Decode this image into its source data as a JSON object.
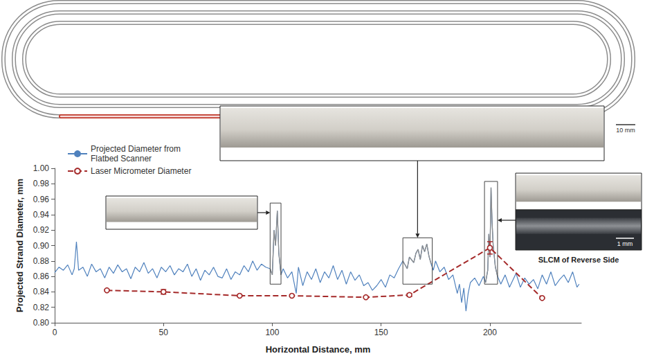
{
  "chart_data": {
    "type": "line",
    "xlabel": "Horizontal Distance, mm",
    "ylabel": "Projected Strand Diameter, mm",
    "xlim": [
      0,
      242
    ],
    "xticks": [
      0,
      50,
      100,
      150,
      200
    ],
    "ylim": [
      0.8,
      1.0
    ],
    "yticks": [
      {
        "value": 0.8,
        "label": "0.80"
      },
      0.82,
      0.84,
      0.86,
      0.88,
      {
        "value": 0.9,
        "label": "0.90"
      },
      0.92,
      0.94,
      0.96,
      0.98,
      {
        "value": 1.0,
        "label": "1.00"
      }
    ],
    "grid": false,
    "legend": "top-left",
    "series": [
      {
        "name": "Projected Diameter from Flatbed Scanner",
        "color": "#4f81bd",
        "line_style": "solid",
        "marker": "none",
        "x": [
          0,
          2,
          4,
          6,
          8,
          9,
          10,
          11,
          13,
          15,
          17,
          19,
          21,
          23,
          25,
          27,
          29,
          31,
          33,
          35,
          37,
          39,
          41,
          43,
          45,
          47,
          49,
          51,
          53,
          55,
          57,
          59,
          61,
          63,
          65,
          67,
          69,
          71,
          73,
          75,
          77,
          79,
          81,
          83,
          85,
          87,
          89,
          91,
          93,
          95,
          97,
          99,
          100,
          100.8,
          101.5,
          102.3,
          103,
          104,
          105,
          107,
          109,
          111,
          112,
          114,
          116,
          118,
          120,
          122,
          124,
          126,
          128,
          130,
          132,
          134,
          136,
          138,
          140,
          142,
          144,
          146,
          148,
          150,
          152,
          154,
          156,
          158,
          160,
          162,
          163,
          165,
          166,
          167,
          168,
          169,
          170,
          171,
          172,
          173,
          174,
          175,
          177,
          179,
          181,
          183,
          185,
          186,
          187,
          188,
          189,
          190,
          191,
          193,
          195,
          197,
          198,
          199,
          199.5,
          200,
          200.5,
          201,
          201.5,
          202.5,
          203.5,
          205,
          207,
          209,
          210,
          212,
          214,
          216,
          218,
          220,
          222,
          224,
          226,
          228,
          230,
          232,
          234,
          236,
          238,
          240,
          241
        ],
        "values": [
          0.865,
          0.872,
          0.868,
          0.875,
          0.862,
          0.87,
          0.905,
          0.868,
          0.872,
          0.86,
          0.876,
          0.866,
          0.87,
          0.858,
          0.872,
          0.864,
          0.875,
          0.866,
          0.87,
          0.857,
          0.872,
          0.866,
          0.878,
          0.864,
          0.87,
          0.858,
          0.872,
          0.866,
          0.874,
          0.862,
          0.87,
          0.866,
          0.876,
          0.86,
          0.87,
          0.855,
          0.868,
          0.862,
          0.872,
          0.86,
          0.858,
          0.87,
          0.856,
          0.866,
          0.862,
          0.874,
          0.866,
          0.88,
          0.868,
          0.876,
          0.872,
          0.87,
          0.862,
          0.92,
          0.9,
          0.945,
          0.89,
          0.862,
          0.87,
          0.858,
          0.866,
          0.838,
          0.872,
          0.848,
          0.866,
          0.856,
          0.87,
          0.852,
          0.866,
          0.858,
          0.874,
          0.856,
          0.868,
          0.85,
          0.866,
          0.855,
          0.862,
          0.848,
          0.852,
          0.842,
          0.848,
          0.856,
          0.846,
          0.862,
          0.858,
          0.87,
          0.88,
          0.87,
          0.885,
          0.878,
          0.89,
          0.895,
          0.882,
          0.9,
          0.892,
          0.902,
          0.886,
          0.876,
          0.868,
          0.88,
          0.866,
          0.872,
          0.856,
          0.862,
          0.838,
          0.85,
          0.826,
          0.845,
          0.815,
          0.838,
          0.852,
          0.858,
          0.848,
          0.86,
          0.852,
          0.868,
          0.915,
          0.885,
          0.975,
          0.93,
          0.9,
          0.872,
          0.86,
          0.85,
          0.862,
          0.846,
          0.852,
          0.864,
          0.846,
          0.858,
          0.85,
          0.856,
          0.844,
          0.862,
          0.85,
          0.866,
          0.848,
          0.856,
          0.862,
          0.852,
          0.866,
          0.846,
          0.85
        ]
      },
      {
        "name": "Laser Micrometer Diameter",
        "color": "#a52a2a",
        "line_style": "dashed",
        "marker": "circle",
        "x": [
          24,
          50,
          85,
          109,
          143,
          163,
          200,
          224
        ],
        "values": [
          0.842,
          0.84,
          0.835,
          0.835,
          0.833,
          0.836,
          0.897,
          0.832
        ],
        "errors": [
          0.001,
          0.003,
          0.001,
          0.001,
          0.001,
          0.002,
          0.008,
          0.001
        ]
      }
    ],
    "annotations": [
      {
        "x": [
          99,
          104
        ],
        "y": [
          0.85,
          0.955
        ]
      },
      {
        "x": [
          160,
          173.5
        ],
        "y": [
          0.85,
          0.91
        ]
      },
      {
        "x": [
          197.5,
          203.5
        ],
        "y": [
          0.85,
          0.983
        ],
        "texts": [
          "SLCM of Reverse Side",
          "1 mm"
        ]
      }
    ],
    "scale_bar": "10 mm"
  }
}
